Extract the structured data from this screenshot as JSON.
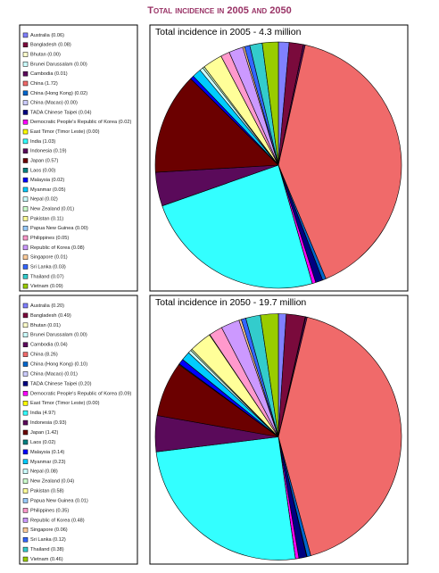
{
  "title": "Total incidence in 2005 and 2050",
  "chart_data": [
    {
      "type": "pie",
      "title": "Total incidence in 2005 - 4.3 million",
      "categories": [
        "Australia (0.06)",
        "Bangladesh (0.08)",
        "Bhutan (0.00)",
        "Brunei Darussalam (0.00)",
        "Cambodia (0.01)",
        "China (1.72)",
        "China (Hong Kong) (0.02)",
        "China (Macao) (0.00)",
        "TADA Chinese Taipei (0.04)",
        "Democratic People's Republic of Korea (0.02)",
        "East Timor (Timor Leste) (0.00)",
        "India (1.03)",
        "Indonesia (0.19)",
        "Japan (0.57)",
        "Laos (0.00)",
        "Malaysia (0.02)",
        "Myanmar (0.05)",
        "Nepal (0.02)",
        "New Zealand (0.01)",
        "Pakistan (0.11)",
        "Papua New Guinea (0.00)",
        "Philippines (0.05)",
        "Republic of Korea (0.08)",
        "Singapore (0.01)",
        "Sri Lanka (0.03)",
        "Thailand (0.07)",
        "Vietnam (0.09)"
      ],
      "values": [
        0.06,
        0.08,
        0.0,
        0.0,
        0.01,
        1.72,
        0.02,
        0.0,
        0.04,
        0.02,
        0.0,
        1.03,
        0.19,
        0.57,
        0.0,
        0.02,
        0.05,
        0.02,
        0.01,
        0.11,
        0.0,
        0.05,
        0.08,
        0.01,
        0.03,
        0.07,
        0.09
      ],
      "colors": [
        "#8080ff",
        "#7a0a3c",
        "#ffffcc",
        "#ccffff",
        "#5c0a5c",
        "#f06a6a",
        "#0066cc",
        "#ccccff",
        "#000080",
        "#ff00ff",
        "#ffff00",
        "#33ffff",
        "#5a0a5a",
        "#6b0000",
        "#008080",
        "#0000ff",
        "#00ccff",
        "#ccffff",
        "#ccffcc",
        "#ffff99",
        "#99ccff",
        "#ff99cc",
        "#cc99ff",
        "#ffcc99",
        "#3366ff",
        "#33cccc",
        "#99cc00"
      ]
    },
    {
      "type": "pie",
      "title": "Total incidence in 2050 - 19.7 million",
      "categories": [
        "Australia (0.20)",
        "Bangladesh (0.49)",
        "Bhutan (0.01)",
        "Brunei Darussalam (0.00)",
        "Cambodia (0.04)",
        "China (8.26)",
        "China (Hong Kong) (0.10)",
        "China (Macao) (0.01)",
        "TADA Chinese Taipei (0.20)",
        "Democratic People's Republic of Korea (0.09)",
        "East Timor (Timor Leste) (0.00)",
        "India (4.97)",
        "Indonesia (0.93)",
        "Japan (1.42)",
        "Laos (0.02)",
        "Malaysia (0.14)",
        "Myanmar (0.23)",
        "Nepal (0.08)",
        "New Zealand (0.04)",
        "Pakistan (0.58)",
        "Papua New Guinea (0.01)",
        "Philippines (0.35)",
        "Republic of Korea (0.48)",
        "Singapore (0.06)",
        "Sri Lanka (0.12)",
        "Thailand (0.38)",
        "Vietnam (0.46)"
      ],
      "values": [
        0.2,
        0.49,
        0.01,
        0.0,
        0.04,
        8.26,
        0.1,
        0.01,
        0.2,
        0.09,
        0.0,
        4.97,
        0.93,
        1.42,
        0.02,
        0.14,
        0.23,
        0.08,
        0.04,
        0.58,
        0.01,
        0.35,
        0.48,
        0.06,
        0.12,
        0.38,
        0.46
      ],
      "colors": [
        "#8080ff",
        "#7a0a3c",
        "#ffffcc",
        "#ccffff",
        "#5c0a5c",
        "#f06a6a",
        "#0066cc",
        "#ccccff",
        "#000080",
        "#ff00ff",
        "#ffff00",
        "#33ffff",
        "#5a0a5a",
        "#6b0000",
        "#008080",
        "#0000ff",
        "#00ccff",
        "#ccffff",
        "#ccffcc",
        "#ffff99",
        "#99ccff",
        "#ff99cc",
        "#cc99ff",
        "#ffcc99",
        "#3366ff",
        "#33cccc",
        "#99cc00"
      ]
    }
  ]
}
